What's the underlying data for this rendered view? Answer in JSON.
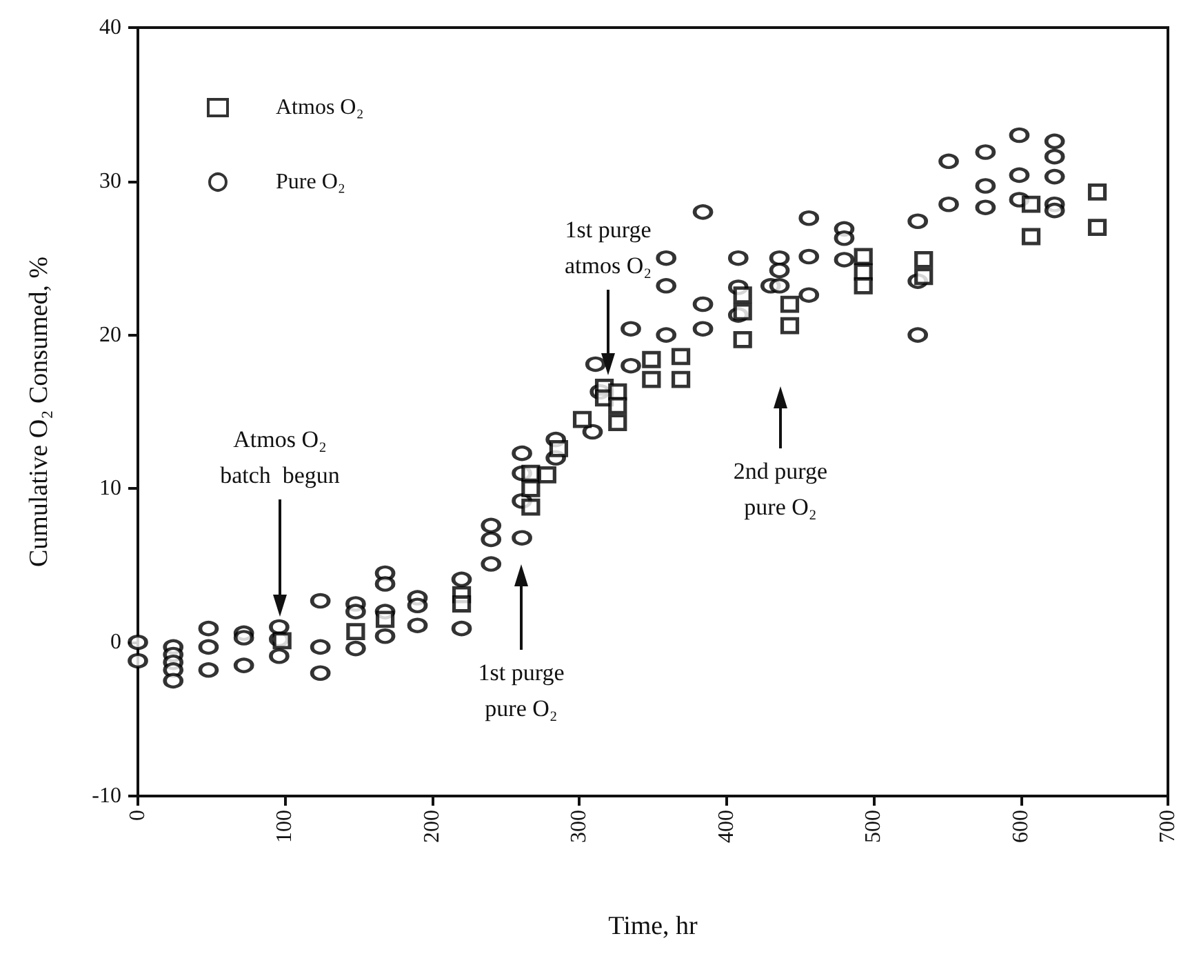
{
  "chart_data": {
    "type": "scatter",
    "xlabel": "Time, hr",
    "ylabel": "Cumulative O₂ Consumed, %",
    "xlim": [
      0,
      700
    ],
    "xticks": [
      0,
      100,
      200,
      300,
      400,
      500,
      600,
      700
    ],
    "ylim": [
      -10,
      40
    ],
    "yticks": [
      -10,
      0,
      10,
      20,
      30,
      40
    ],
    "grid": false,
    "legend": "top left",
    "series": [
      {
        "name": "Atmos O₂",
        "color": "#000000",
        "marker": "square",
        "x": [
          98,
          148,
          168,
          220,
          220,
          267,
          267,
          267,
          278,
          286,
          302,
          317,
          317,
          326,
          326,
          326,
          349,
          349,
          369,
          369,
          411,
          411,
          411,
          443,
          443,
          493,
          493,
          493,
          534,
          534,
          607,
          607,
          652,
          652
        ],
        "values": [
          0.1,
          0.7,
          1.5,
          3.1,
          2.5,
          11.0,
          10.0,
          8.8,
          10.9,
          12.6,
          14.5,
          16.6,
          15.9,
          16.3,
          15.4,
          14.3,
          18.4,
          17.1,
          18.6,
          17.1,
          22.6,
          21.5,
          19.7,
          22.0,
          20.6,
          25.1,
          24.1,
          23.2,
          24.9,
          23.8,
          28.5,
          26.4,
          29.3,
          27.0
        ]
      },
      {
        "name": "Pure O₂",
        "color": "#000000",
        "marker": "circle",
        "x": [
          0,
          0,
          24,
          24,
          24,
          24,
          24,
          48,
          48,
          48,
          72,
          72,
          72,
          96,
          96,
          96,
          124,
          124,
          124,
          148,
          148,
          148,
          168,
          168,
          168,
          168,
          190,
          190,
          190,
          220,
          220,
          240,
          240,
          240,
          261,
          261,
          261,
          261,
          284,
          284,
          309,
          311,
          314,
          335,
          335,
          359,
          359,
          359,
          384,
          384,
          384,
          408,
          408,
          408,
          430,
          436,
          436,
          436,
          456,
          456,
          456,
          480,
          480,
          480,
          530,
          530,
          530,
          551,
          551,
          576,
          576,
          576,
          599,
          599,
          599,
          623,
          623,
          623,
          623,
          623
        ],
        "values": [
          0,
          -1.2,
          -0.3,
          -0.8,
          -1.3,
          -1.8,
          -2.5,
          0.9,
          -0.3,
          -1.8,
          0.6,
          0.3,
          -1.5,
          1.0,
          0.2,
          -0.9,
          2.7,
          -0.3,
          -2.0,
          2.5,
          2.0,
          -0.4,
          4.5,
          3.8,
          2.0,
          0.4,
          2.9,
          2.4,
          1.1,
          4.1,
          0.9,
          7.6,
          6.7,
          5.1,
          6.8,
          12.3,
          11.0,
          9.2,
          13.2,
          12.0,
          13.7,
          18.1,
          16.3,
          20.4,
          18.0,
          25.0,
          23.2,
          20.0,
          28.0,
          22.0,
          20.4,
          25.0,
          23.1,
          21.3,
          23.2,
          25.0,
          24.2,
          23.2,
          27.6,
          25.1,
          22.6,
          26.9,
          26.3,
          24.9,
          27.4,
          23.5,
          20.0,
          31.3,
          28.5,
          31.9,
          29.7,
          28.3,
          33.0,
          30.4,
          28.8,
          32.6,
          31.6,
          30.3,
          28.5,
          28.1
        ]
      }
    ],
    "annotations": [
      "Atmos O₂\nbatch  begun",
      "1st purge\npure O₂",
      "1st purge\natmos O₂",
      "2nd purge\npure O₂"
    ]
  }
}
